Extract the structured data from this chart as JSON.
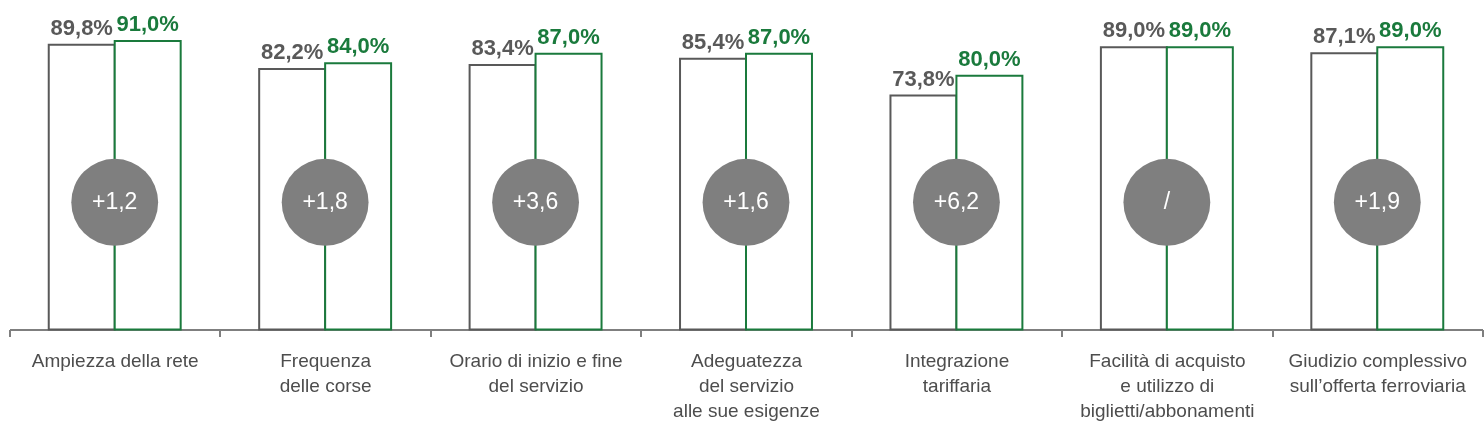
{
  "chart_data": {
    "type": "bar",
    "categories": [
      "Ampiezza della rete",
      "Frequenza\ndelle corse",
      "Orario di inizio e fine\ndel servizio",
      "Adeguatezza\ndel servizio\nalle sue esigenze",
      "Integrazione\ntariffaria",
      "Facilità di acquisto\ne utilizzo di\nbiglietti/abbonamenti",
      "Giudizio complessivo\nsull’offerta ferroviaria"
    ],
    "series": [
      {
        "color": "#595959",
        "values": [
          89.8,
          82.2,
          83.4,
          85.4,
          73.8,
          89.0,
          87.1
        ],
        "value_labels": [
          "89,8%",
          "82,2%",
          "83,4%",
          "85,4%",
          "73,8%",
          "89,0%",
          "87,1%"
        ]
      },
      {
        "color": "#1a7a3c",
        "values": [
          91.0,
          84.0,
          87.0,
          87.0,
          80.0,
          89.0,
          89.0
        ],
        "value_labels": [
          "91,0%",
          "84,0%",
          "87,0%",
          "87,0%",
          "80,0%",
          "89,0%",
          "89,0%"
        ]
      }
    ],
    "annotations": [
      {
        "text": "+1,2",
        "x": "Ampiezza della rete"
      },
      {
        "text": "+1,8",
        "x": "Frequenza\ndelle corse"
      },
      {
        "text": "+3,6",
        "x": "Orario di inizio e fine\ndel servizio"
      },
      {
        "text": "+1,6",
        "x": "Adeguatezza\ndel servizio\nalle sue esigenze"
      },
      {
        "text": "+6,2",
        "x": "Integrazione\ntariffaria"
      },
      {
        "text": "/",
        "x": "Facilità di acquisto\ne utilizzo di\nbiglietti/abbonamenti"
      },
      {
        "text": "+1,9",
        "x": "Giudizio complessivo\nsull’offerta ferroviaria"
      }
    ]
  }
}
